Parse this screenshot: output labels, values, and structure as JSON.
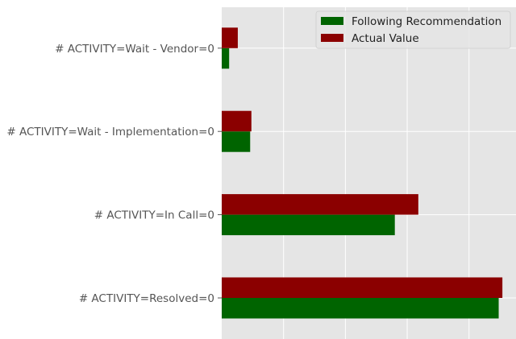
{
  "chart_data": {
    "type": "bar",
    "orientation": "horizontal",
    "categories": [
      "# ACTIVITY=Resolved=0",
      "# ACTIVITY=In Call=0",
      "# ACTIVITY=Wait - Implementation=0",
      "# ACTIVITY=Wait - Vendor=0"
    ],
    "series": [
      {
        "name": "Following Recommendation",
        "color": "#006400",
        "values": [
          0.224,
          0.14,
          0.023,
          0.006
        ]
      },
      {
        "name": "Actual Value",
        "color": "#8b0000",
        "values": [
          0.227,
          0.159,
          0.024,
          0.013
        ]
      }
    ],
    "xlim": [
      0,
      0.238
    ],
    "x_gridlines": [
      0.05,
      0.1,
      0.15,
      0.2
    ],
    "grid": true,
    "legend_position": "upper right",
    "background": "#e5e5e5",
    "grid_color": "#ffffff",
    "title": "",
    "xlabel": "",
    "ylabel": ""
  }
}
